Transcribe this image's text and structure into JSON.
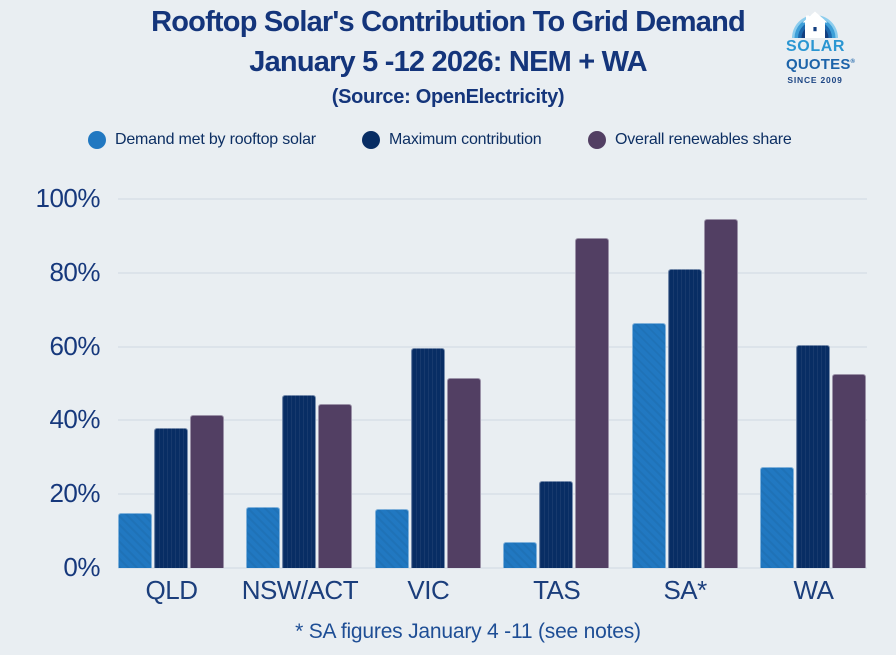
{
  "header": {
    "title_line1": "Rooftop Solar's Contribution To Grid Demand",
    "title_line2": "January 5 -12 2026: NEM + WA",
    "subtitle": "(Source: OpenElectricity)"
  },
  "logo": {
    "line1": "SOLAR",
    "line2": "QUOTES",
    "registered_mark": "®",
    "line3": "SINCE 2009"
  },
  "footnote": "* SA figures January 4 -11 (see notes)",
  "colors": {
    "background": "#e9eef2",
    "title_navy": "#14357b",
    "axis_label": "#16387c",
    "gridline": "#dce3ea",
    "footnote": "#1e4e95",
    "series_blue": "#2178c1",
    "series_navy": "#082d64",
    "series_plum": "#523f63"
  },
  "chart_data": {
    "type": "bar",
    "title": "Rooftop Solar's Contribution To Grid Demand January 5 -12 2026: NEM + WA",
    "subtitle": "(Source: OpenElectricity)",
    "categories": [
      "QLD",
      "NSW/ACT",
      "VIC",
      "TAS",
      "SA*",
      "WA"
    ],
    "series": [
      {
        "name": "Demand met by rooftop solar",
        "color": "#2178c1",
        "values": [
          15,
          16.5,
          16,
          7,
          66.5,
          27.5
        ]
      },
      {
        "name": "Maximum contribution",
        "color": "#082d64",
        "values": [
          38,
          47,
          59.5,
          23.5,
          81,
          60.5
        ]
      },
      {
        "name": "Overall renewables share",
        "color": "#523f63",
        "values": [
          41.5,
          44.5,
          51.5,
          89.5,
          94.5,
          52.5
        ]
      }
    ],
    "xlabel": "",
    "ylabel": "",
    "ylim": [
      0,
      100
    ],
    "yticks": [
      "0%",
      "20%",
      "40%",
      "60%",
      "80%",
      "100%"
    ],
    "grid": true,
    "legend_position": "top",
    "footnote": "* SA figures January 4 -11 (see notes)"
  }
}
